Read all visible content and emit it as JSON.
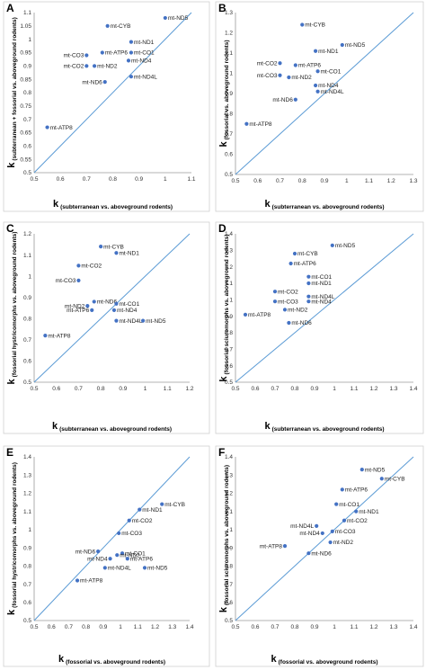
{
  "chart_data": [
    {
      "type": "scatter",
      "panel": "A",
      "xlabel_k": "k",
      "xlabel": "(subterranean vs. aboveground rodents)",
      "ylabel_k": "k",
      "ylabel": "(subterranean + fossorial vs. aboveground rodents)",
      "xlim": [
        0.5,
        1.1
      ],
      "ylim": [
        0.5,
        1.1
      ],
      "xticks": [
        "0.5",
        "0.6",
        "0.7",
        "0.8",
        "0.9",
        "1",
        "1.1"
      ],
      "yticks": [
        "0.5",
        "0.55",
        "0.6",
        "0.65",
        "0.7",
        "0.75",
        "0.8",
        "0.85",
        "0.9",
        "0.95",
        "1",
        "1.05",
        "1.1"
      ],
      "points": [
        {
          "label": "mt-ND5",
          "x": 1.0,
          "y": 1.08
        },
        {
          "label": "mt-CYB",
          "x": 0.78,
          "y": 1.05
        },
        {
          "label": "mt-ND1",
          "x": 0.87,
          "y": 0.99
        },
        {
          "label": "mt-ATP6",
          "x": 0.76,
          "y": 0.95
        },
        {
          "label": "mt-CO1",
          "x": 0.87,
          "y": 0.95
        },
        {
          "label": "mt-CO3",
          "x": 0.7,
          "y": 0.94
        },
        {
          "label": "mt-ND4",
          "x": 0.86,
          "y": 0.92
        },
        {
          "label": "mt-CO2",
          "x": 0.7,
          "y": 0.9
        },
        {
          "label": "mt-ND2",
          "x": 0.73,
          "y": 0.9
        },
        {
          "label": "mt-ND4L",
          "x": 0.87,
          "y": 0.86
        },
        {
          "label": "mt-ND6",
          "x": 0.77,
          "y": 0.84
        },
        {
          "label": "mt-ATP8",
          "x": 0.55,
          "y": 0.67
        }
      ]
    },
    {
      "type": "scatter",
      "panel": "B",
      "xlabel_k": "k",
      "xlabel": "(subterranean vs. aboveground rodents)",
      "ylabel_k": "k",
      "ylabel": "(fossorial vs. aboveground rodents)",
      "xlim": [
        0.5,
        1.3
      ],
      "ylim": [
        0.5,
        1.3
      ],
      "xticks": [
        "0.5",
        "0.6",
        "0.7",
        "0.8",
        "0.9",
        "1",
        "1.1",
        "1.2",
        "1.3"
      ],
      "yticks": [
        "0.5",
        "0.6",
        "0.7",
        "0.8",
        "0.9",
        "1",
        "1.1",
        "1.2",
        "1.3"
      ],
      "points": [
        {
          "label": "mt-CYB",
          "x": 0.8,
          "y": 1.24
        },
        {
          "label": "mt-ND5",
          "x": 0.98,
          "y": 1.14
        },
        {
          "label": "mt-ND1",
          "x": 0.86,
          "y": 1.11
        },
        {
          "label": "mt-CO2",
          "x": 0.7,
          "y": 1.05
        },
        {
          "label": "mt-ATP6",
          "x": 0.77,
          "y": 1.04
        },
        {
          "label": "mt-CO1",
          "x": 0.87,
          "y": 1.01
        },
        {
          "label": "mt-CO3",
          "x": 0.7,
          "y": 0.99
        },
        {
          "label": "mt-ND2",
          "x": 0.74,
          "y": 0.98
        },
        {
          "label": "mt-ND4",
          "x": 0.86,
          "y": 0.94
        },
        {
          "label": "mt-ND4L",
          "x": 0.87,
          "y": 0.91
        },
        {
          "label": "mt-ND6",
          "x": 0.77,
          "y": 0.87
        },
        {
          "label": "mt-ATP8",
          "x": 0.55,
          "y": 0.75
        }
      ]
    },
    {
      "type": "scatter",
      "panel": "C",
      "xlabel_k": "k",
      "xlabel": "(subterranean vs. aboveground rodents)",
      "ylabel_k": "k",
      "ylabel": "(fossorial hystricomorphs vs. aboveground rodents)",
      "xlim": [
        0.5,
        1.2
      ],
      "ylim": [
        0.5,
        1.2
      ],
      "xticks": [
        "0.5",
        "0.6",
        "0.7",
        "0.8",
        "0.9",
        "1",
        "1.1",
        "1.2"
      ],
      "yticks": [
        "0.5",
        "0.6",
        "0.7",
        "0.8",
        "0.9",
        "1",
        "1.1",
        "1.2"
      ],
      "points": [
        {
          "label": "mt-CYB",
          "x": 0.8,
          "y": 1.14
        },
        {
          "label": "mt-ND1",
          "x": 0.87,
          "y": 1.11
        },
        {
          "label": "mt-CO2",
          "x": 0.7,
          "y": 1.05
        },
        {
          "label": "mt-CO3",
          "x": 0.7,
          "y": 0.98
        },
        {
          "label": "mt-ND6",
          "x": 0.77,
          "y": 0.88
        },
        {
          "label": "mt-CO1",
          "x": 0.87,
          "y": 0.87
        },
        {
          "label": "mt-ND2",
          "x": 0.74,
          "y": 0.86
        },
        {
          "label": "mt-ATP6",
          "x": 0.76,
          "y": 0.84
        },
        {
          "label": "mt-ND4",
          "x": 0.86,
          "y": 0.84
        },
        {
          "label": "mt-ND4L",
          "x": 0.87,
          "y": 0.79
        },
        {
          "label": "mt-ND5",
          "x": 0.99,
          "y": 0.79
        },
        {
          "label": "mt-ATP8",
          "x": 0.55,
          "y": 0.72
        }
      ]
    },
    {
      "type": "scatter",
      "panel": "D",
      "xlabel_k": "k",
      "xlabel": "(subterranean vs. aboveground rodents)",
      "ylabel_k": "k",
      "ylabel": "(fossorial sciuromorphs vs. aboveground rodents)",
      "xlim": [
        0.5,
        1.4
      ],
      "ylim": [
        0.5,
        1.4
      ],
      "xticks": [
        "0.5",
        "0.6",
        "0.7",
        "0.8",
        "0.9",
        "1",
        "1.1",
        "1.2",
        "1.3",
        "1.4"
      ],
      "yticks": [
        "0.5",
        "0.6",
        "0.7",
        "0.8",
        "0.9",
        "1",
        "1.1",
        "1.2",
        "1.3",
        "1.4"
      ],
      "points": [
        {
          "label": "mt-ND5",
          "x": 0.99,
          "y": 1.33
        },
        {
          "label": "mt-CYB",
          "x": 0.8,
          "y": 1.28
        },
        {
          "label": "mt-ATP6",
          "x": 0.78,
          "y": 1.22
        },
        {
          "label": "mt-CO1",
          "x": 0.87,
          "y": 1.14
        },
        {
          "label": "mt-ND1",
          "x": 0.87,
          "y": 1.1
        },
        {
          "label": "mt-CO2",
          "x": 0.7,
          "y": 1.05
        },
        {
          "label": "mt-ND4L",
          "x": 0.87,
          "y": 1.02
        },
        {
          "label": "mt-CO3",
          "x": 0.7,
          "y": 0.99
        },
        {
          "label": "mt-ND4",
          "x": 0.87,
          "y": 0.99
        },
        {
          "label": "mt-ND2",
          "x": 0.75,
          "y": 0.94
        },
        {
          "label": "mt-ATP8",
          "x": 0.55,
          "y": 0.91
        },
        {
          "label": "mt-ND6",
          "x": 0.77,
          "y": 0.86
        }
      ]
    },
    {
      "type": "scatter",
      "panel": "E",
      "xlabel_k": "k",
      "xlabel": "(fossorial vs. aboveground rodents)",
      "ylabel_k": "k",
      "ylabel": "(fossorial hystricomorphs vs. aboveground rodents)",
      "xlim": [
        0.5,
        1.4
      ],
      "ylim": [
        0.5,
        1.4
      ],
      "xticks": [
        "0.5",
        "0.6",
        "0.7",
        "0.8",
        "0.9",
        "1",
        "1.1",
        "1.2",
        "1.3",
        "1.4"
      ],
      "yticks": [
        "0.5",
        "0.6",
        "0.7",
        "0.8",
        "0.9",
        "1",
        "1.1",
        "1.2",
        "1.3",
        "1.4"
      ],
      "points": [
        {
          "label": "mt-CYB",
          "x": 1.24,
          "y": 1.14
        },
        {
          "label": "mt-ND1",
          "x": 1.11,
          "y": 1.11
        },
        {
          "label": "mt-CO2",
          "x": 1.05,
          "y": 1.05
        },
        {
          "label": "mt-CO3",
          "x": 0.99,
          "y": 0.98
        },
        {
          "label": "mt-ND6",
          "x": 0.87,
          "y": 0.88
        },
        {
          "label": "mt-CO1",
          "x": 1.01,
          "y": 0.87
        },
        {
          "label": "mt-ND2",
          "x": 0.98,
          "y": 0.86
        },
        {
          "label": "mt-ND4",
          "x": 0.94,
          "y": 0.84
        },
        {
          "label": "mt-ATP6",
          "x": 1.04,
          "y": 0.84
        },
        {
          "label": "mt-ND4L",
          "x": 0.91,
          "y": 0.79
        },
        {
          "label": "mt-ND5",
          "x": 1.14,
          "y": 0.79
        },
        {
          "label": "mt-ATP8",
          "x": 0.75,
          "y": 0.72
        }
      ]
    },
    {
      "type": "scatter",
      "panel": "F",
      "xlabel_k": "k",
      "xlabel": "(fossorial vs. aboveground rodents)",
      "ylabel_k": "k",
      "ylabel": "(fossorial sciuromorphs vs. aboveground rodents)",
      "xlim": [
        0.5,
        1.4
      ],
      "ylim": [
        0.5,
        1.4
      ],
      "xticks": [
        "0.5",
        "0.6",
        "0.7",
        "0.8",
        "0.9",
        "1",
        "1.1",
        "1.2",
        "1.3",
        "1.4"
      ],
      "yticks": [
        "0.5",
        "0.6",
        "0.7",
        "0.8",
        "0.9",
        "1",
        "1.1",
        "1.2",
        "1.3",
        "1.4"
      ],
      "points": [
        {
          "label": "mt-ND5",
          "x": 1.14,
          "y": 1.33
        },
        {
          "label": "mt-CYB",
          "x": 1.24,
          "y": 1.28
        },
        {
          "label": "mt-ATP6",
          "x": 1.04,
          "y": 1.22
        },
        {
          "label": "mt-CO1",
          "x": 1.01,
          "y": 1.14
        },
        {
          "label": "mt-ND1",
          "x": 1.11,
          "y": 1.1
        },
        {
          "label": "mt-CO2",
          "x": 1.05,
          "y": 1.05
        },
        {
          "label": "mt-ND4L",
          "x": 0.91,
          "y": 1.02
        },
        {
          "label": "mt-ND4",
          "x": 0.94,
          "y": 0.98
        },
        {
          "label": "mt-CO3",
          "x": 0.99,
          "y": 0.99
        },
        {
          "label": "mt-ND2",
          "x": 0.98,
          "y": 0.93
        },
        {
          "label": "mt-ATP8",
          "x": 0.75,
          "y": 0.91
        },
        {
          "label": "mt-ND6",
          "x": 0.87,
          "y": 0.87
        }
      ]
    }
  ]
}
